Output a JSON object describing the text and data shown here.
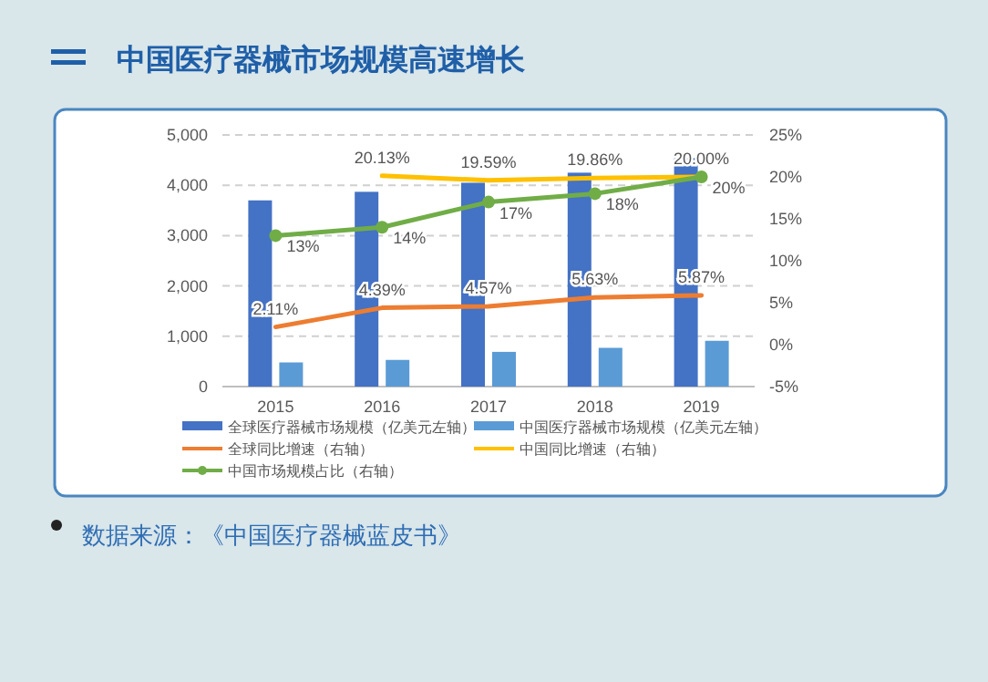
{
  "chart_data": {
    "type": "bar",
    "title": "中国医疗器械市场规模高速增长",
    "categories": [
      "2015",
      "2016",
      "2017",
      "2018",
      "2019"
    ],
    "series": [
      {
        "name": "全球医疗器械市场规模（亿美元左轴）",
        "color": "#4472c4",
        "values": [
          3700,
          3870,
          4050,
          4250,
          4540
        ]
      },
      {
        "name": "中国医疗器械市场规模（亿美元左轴）",
        "color": "#5b9bd5",
        "values": [
          480,
          530,
          690,
          770,
          910
        ]
      },
      {
        "name": "全球同比增速（右轴）",
        "type": "line",
        "axis": "y2",
        "color": "#ed7d31",
        "marker": "none",
        "values": [
          2.11,
          4.39,
          4.57,
          5.63,
          5.87
        ],
        "value_labels": [
          "2.11%",
          "4.39%",
          "4.57%",
          "5.63%",
          "5.87%"
        ]
      },
      {
        "name": "中国同比增速（右轴）",
        "type": "line",
        "axis": "y2",
        "color": "#ffc000",
        "marker": "none",
        "values": [
          null,
          20.13,
          19.59,
          19.86,
          20.0
        ],
        "value_labels": [
          null,
          "20.13%",
          "19.59%",
          "19.86%",
          "20.00%"
        ]
      },
      {
        "name": "中国市场规模占比（右轴）",
        "type": "line",
        "axis": "y2",
        "color": "#70ad47",
        "marker": "circle",
        "values": [
          13,
          14,
          17,
          18,
          20
        ],
        "value_labels": [
          "13%",
          "14%",
          "17%",
          "18%",
          "20%"
        ]
      }
    ],
    "ylim": [
      0,
      5000
    ],
    "yticks": [
      {
        "value": 0,
        "label": "0"
      },
      {
        "value": 1000,
        "label": "1,000"
      },
      {
        "value": 2000,
        "label": "2,000"
      },
      {
        "value": 3000,
        "label": "3,000"
      },
      {
        "value": 4000,
        "label": "4,000"
      },
      {
        "value": 5000,
        "label": "5,000"
      }
    ],
    "y2lim": [
      -5,
      25
    ],
    "y2ticks": [
      {
        "value": -5,
        "label": "-5%"
      },
      {
        "value": 0,
        "label": "0%"
      },
      {
        "value": 5,
        "label": "5%"
      },
      {
        "value": 10,
        "label": "10%"
      },
      {
        "value": 15,
        "label": "15%"
      },
      {
        "value": 20,
        "label": "20%"
      },
      {
        "value": 25,
        "label": "25%"
      }
    ],
    "grid": "y",
    "legend": "bottom",
    "line_style": "solid",
    "annotations": [
      "数据来源：《中国医疗器械蓝皮书》"
    ]
  }
}
